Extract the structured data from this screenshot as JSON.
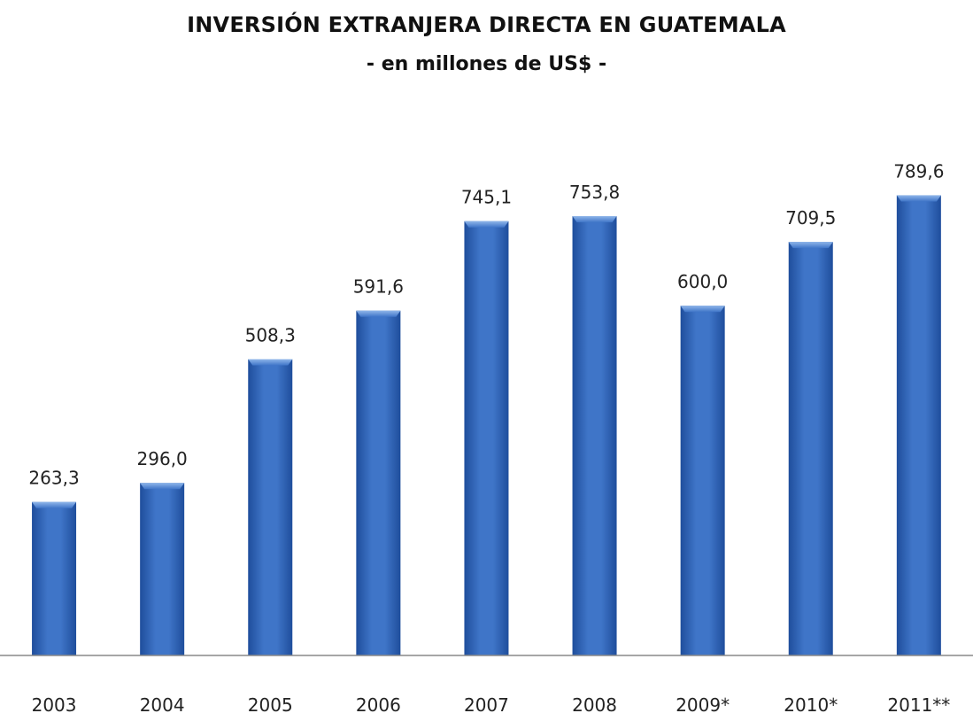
{
  "chart_data": {
    "type": "bar",
    "title": "INVERSIÓN EXTRANJERA DIRECTA EN GUATEMALA",
    "subtitle": "- en millones de US$ -",
    "categories": [
      "2003",
      "2004",
      "2005",
      "2006",
      "2007",
      "2008",
      "2009*",
      "2010*",
      "2011**"
    ],
    "values": [
      263.3,
      296.0,
      508.3,
      591.6,
      745.1,
      753.8,
      600.0,
      709.5,
      789.6
    ],
    "value_labels": [
      "263,3",
      "296,0",
      "508,3",
      "591,6",
      "745,1",
      "753,8",
      "600,0",
      "709,5",
      "789,6"
    ],
    "xlabel": "",
    "ylabel": "",
    "ylim": [
      0,
      800
    ],
    "grid": false,
    "legend": "none",
    "bar_color": "#3f75c8",
    "bar_color_dark": "#1f4e9c",
    "bar_color_light": "#8fb6ea"
  }
}
